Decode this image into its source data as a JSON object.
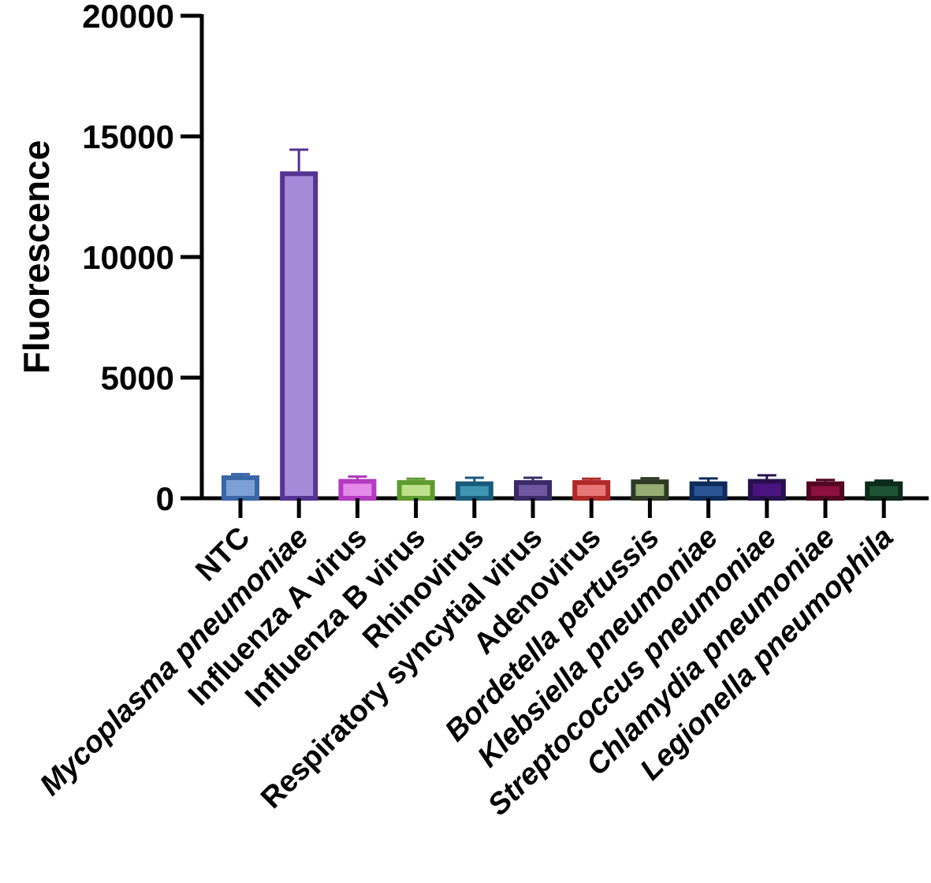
{
  "chart_data": {
    "type": "bar",
    "title": "",
    "xlabel": "",
    "ylabel": "Fluorescence",
    "ylim": [
      0,
      20000
    ],
    "yticks": [
      0,
      5000,
      10000,
      15000,
      20000
    ],
    "yticks_text": [
      "0",
      "5000",
      "10000",
      "15000",
      "20000"
    ],
    "grid": false,
    "legend": "none",
    "categories": [
      {
        "label": "NTC",
        "italic": false
      },
      {
        "label": "Mycoplasma pneumoniae",
        "italic": true
      },
      {
        "label": "Influenza A virus",
        "italic": false
      },
      {
        "label": "Influenza B virus",
        "italic": false
      },
      {
        "label": "Rhinovirus",
        "italic": false
      },
      {
        "label": "Respiratory syncytial virus",
        "italic": false
      },
      {
        "label": "Adenovirus",
        "italic": false
      },
      {
        "label": "Bordetella pertussis",
        "italic": true
      },
      {
        "label": "Klebsiella pneumoniae",
        "italic": true
      },
      {
        "label": "Streptococcus pneumoniae",
        "italic": true
      },
      {
        "label": "Chlamydia pneumoniae",
        "italic": true
      },
      {
        "label": "Legionella pneumophila",
        "italic": true
      }
    ],
    "values": [
      950,
      13550,
      800,
      750,
      700,
      750,
      750,
      780,
      700,
      800,
      700,
      700
    ],
    "errors": [
      50,
      900,
      100,
      60,
      150,
      100,
      60,
      50,
      120,
      150,
      60,
      30
    ],
    "bar_fill": [
      "#7da1d6",
      "#a58ad8",
      "#e58ae8",
      "#bfe08a",
      "#3e96b4",
      "#6e56a0",
      "#e87878",
      "#96ae74",
      "#2a5494",
      "#4a1480",
      "#8c1040",
      "#1c5434"
    ],
    "bar_edge": [
      "#3a66a8",
      "#553294",
      "#b43ac0",
      "#5e9a2e",
      "#1a5a7a",
      "#3a2a66",
      "#b02828",
      "#2e3a26",
      "#0e2c5a",
      "#28104e",
      "#520620",
      "#0c2a1a"
    ]
  }
}
